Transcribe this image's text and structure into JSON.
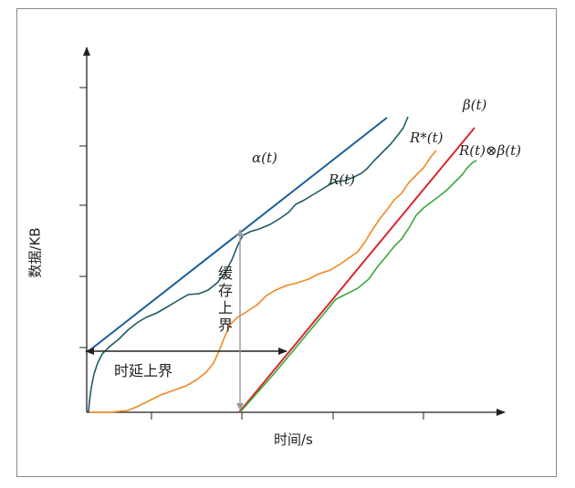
{
  "axes": {
    "x_label": "时间/s",
    "y_label": "数据/KB"
  },
  "curves": {
    "alpha": "α(t)",
    "R": "R(t)",
    "R_star": "R*(t)",
    "beta": "β(t)",
    "R_conv_beta": "R(t)⊗β(t)"
  },
  "annotations": {
    "delay_bound": "时延上界",
    "buffer_bound": [
      "缓",
      "存",
      "上",
      "界"
    ]
  },
  "colors": {
    "alpha": "#1a5e9a",
    "R": "#1f5c66",
    "R_star": "#f08a24",
    "beta": "#d8282f",
    "R_conv_beta": "#3aa83a",
    "arrows": "#222222",
    "buffer_arrow": "#9a9a9a"
  }
}
